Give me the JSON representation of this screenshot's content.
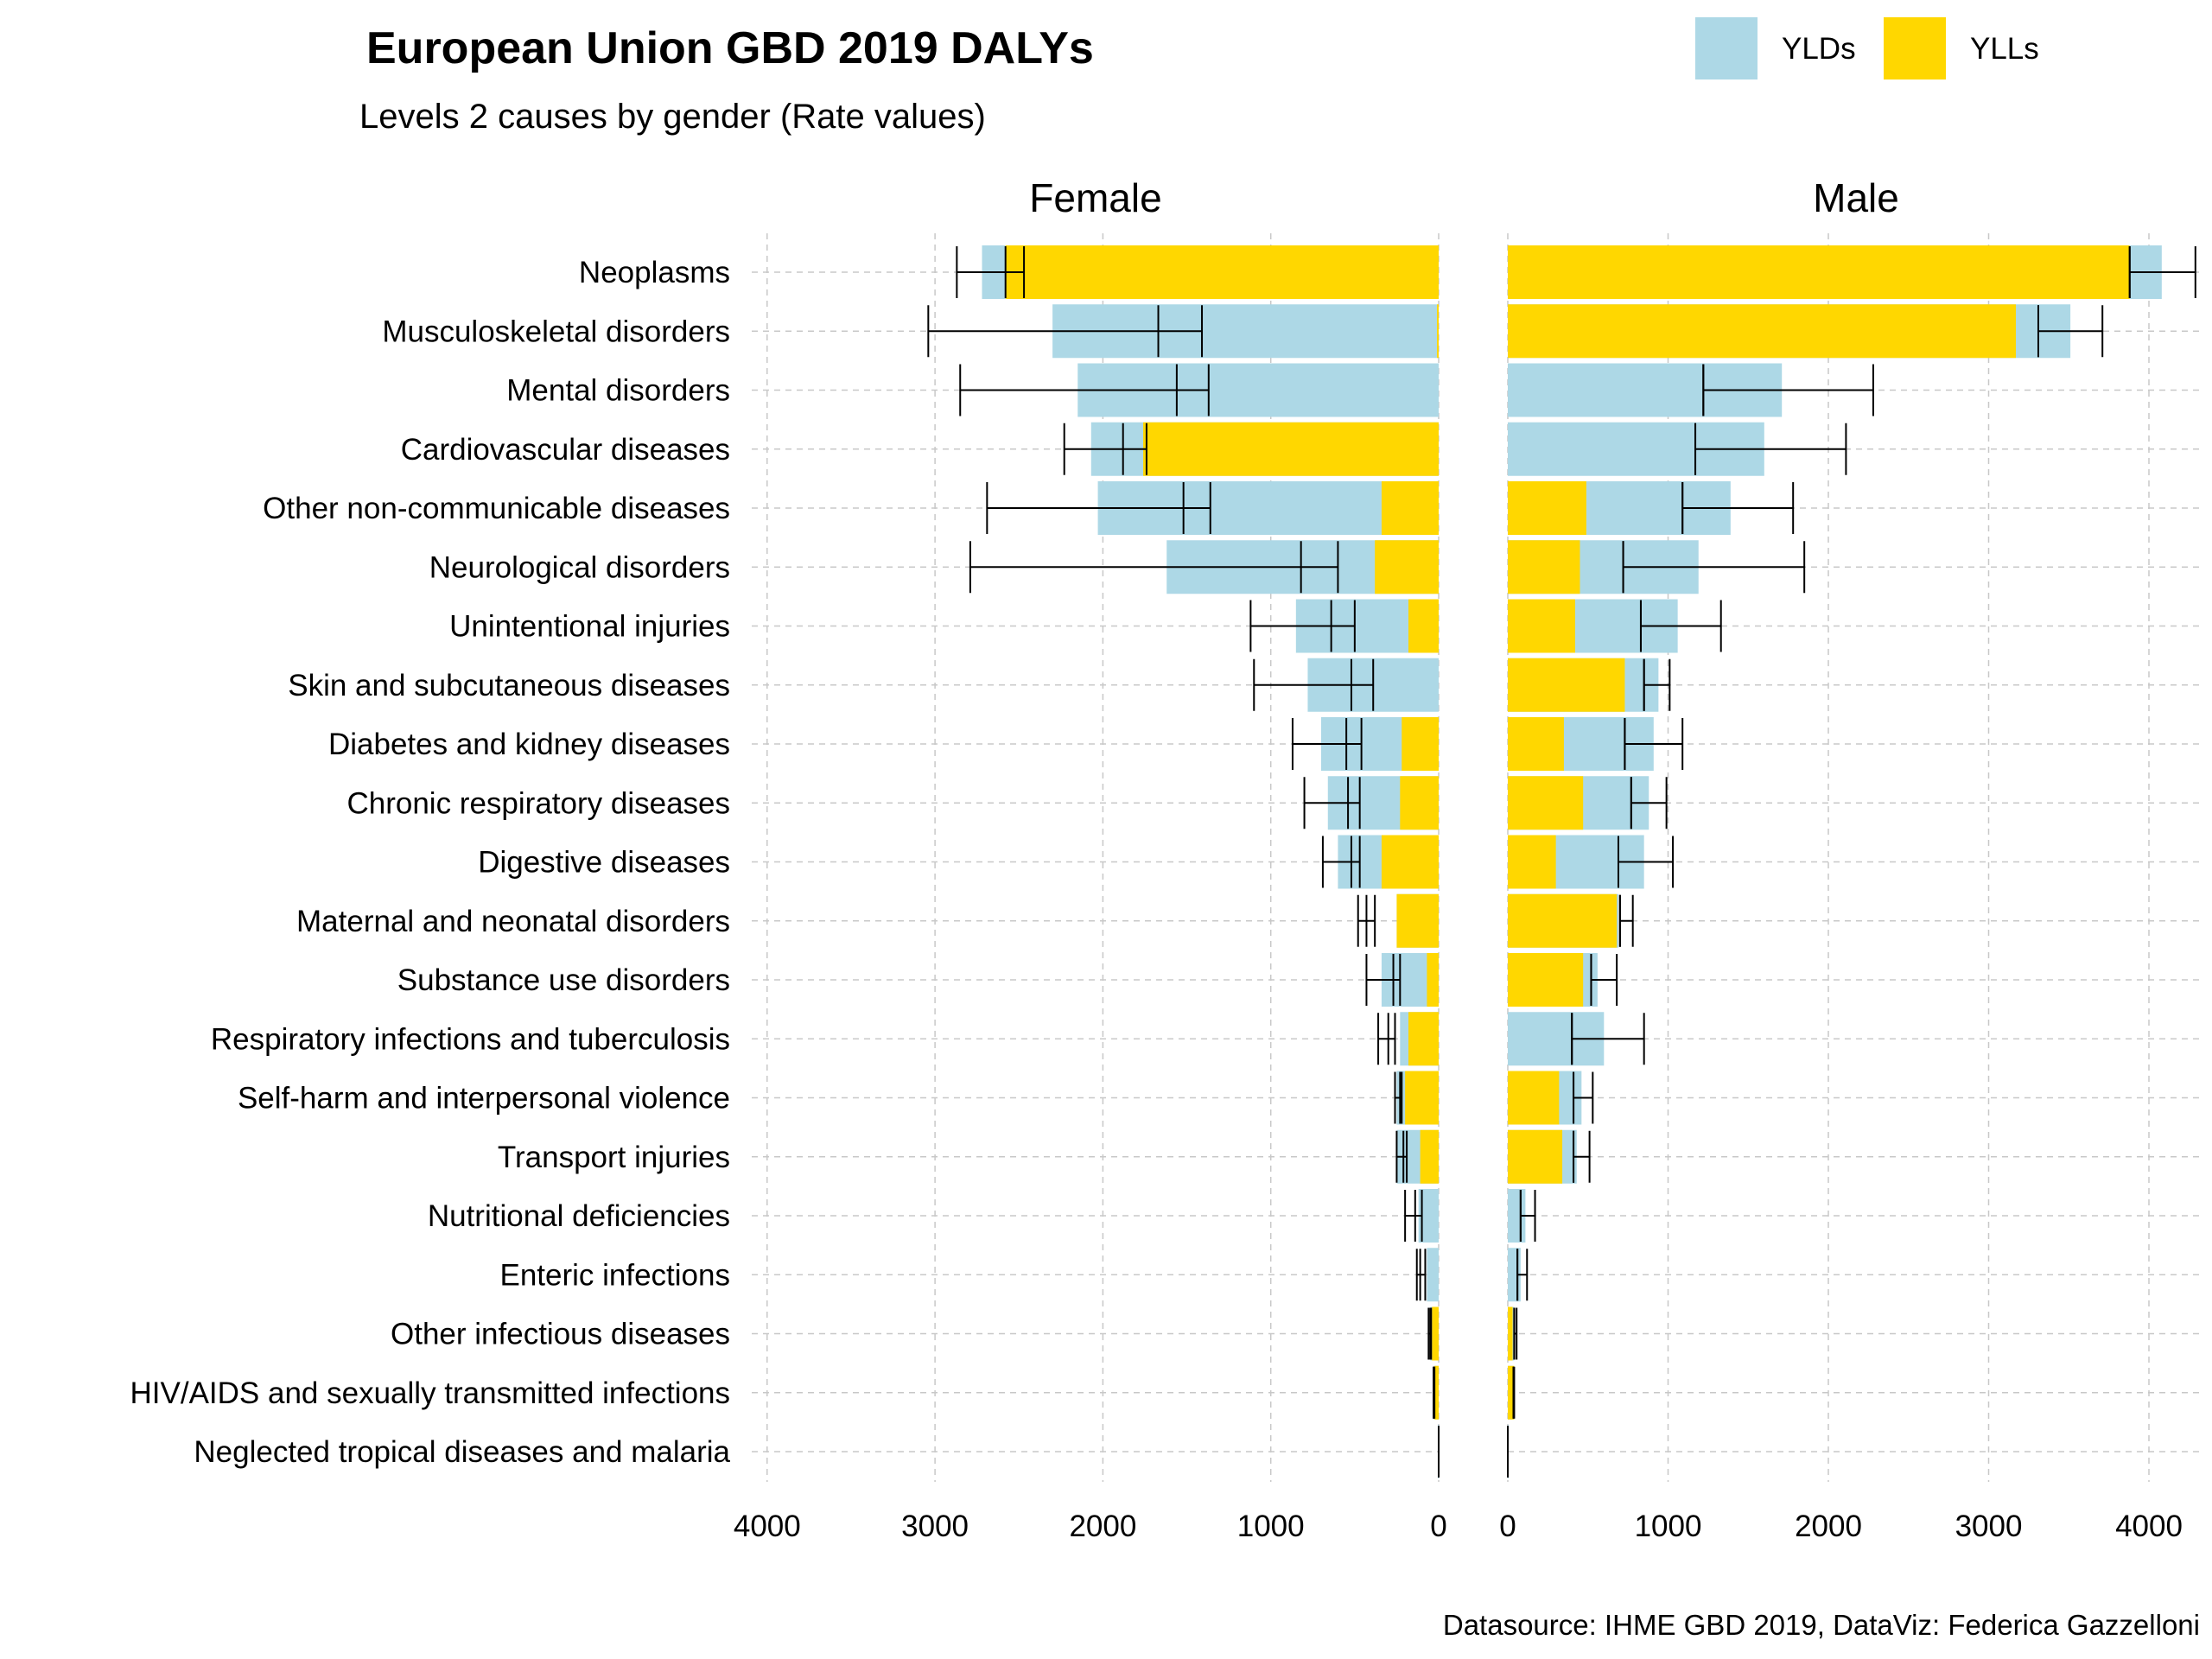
{
  "chart_data": {
    "type": "bar",
    "title": "European Union GBD 2019 DALYs",
    "subtitle": "Levels 2 causes by gender (Rate values)",
    "caption": "Datasource: IHME GBD 2019, DataViz: Federica Gazzelloni",
    "legend": {
      "placement": "top-right",
      "entries": [
        {
          "name": "YLDs",
          "color": "#ADD8E6"
        },
        {
          "name": "YLLs",
          "color": "#FFD700"
        }
      ]
    },
    "facets": [
      "Female",
      "Male"
    ],
    "xlim": [
      0,
      4300
    ],
    "xticks": [
      0,
      1000,
      2000,
      3000,
      4000
    ],
    "grid": true,
    "categories": [
      "Neoplasms",
      "Musculoskeletal disorders",
      "Mental disorders",
      "Cardiovascular diseases",
      "Other non-communicable diseases",
      "Neurological disorders",
      "Unintentional injuries",
      "Skin and subcutaneous diseases",
      "Diabetes and kidney diseases",
      "Chronic respiratory diseases",
      "Digestive diseases",
      "Maternal and neonatal disorders",
      "Substance use disorders",
      "Respiratory infections and tuberculosis",
      "Self-harm and interpersonal violence",
      "Transport injuries",
      "Nutritional deficiencies",
      "Enteric infections",
      "Other infectious diseases",
      "HIV/AIDS and sexually transmitted infections",
      "Neglected tropical diseases and malaria"
    ],
    "series": [
      {
        "name": "Female YLDs total",
        "values": [
          2720,
          2300,
          2150,
          2070,
          2030,
          1620,
          850,
          780,
          700,
          660,
          600,
          250,
          340,
          230,
          250,
          250,
          120,
          70,
          50,
          30,
          5
        ]
      },
      {
        "name": "Female YLLs",
        "values": [
          2580,
          10,
          0,
          1760,
          340,
          380,
          180,
          0,
          220,
          230,
          340,
          250,
          70,
          180,
          200,
          110,
          0,
          0,
          40,
          25,
          0
        ]
      },
      {
        "name": "Female error center",
        "values": [
          2580,
          1670,
          1560,
          1880,
          1520,
          820,
          640,
          520,
          550,
          540,
          520,
          430,
          270,
          300,
          230,
          210,
          140,
          110,
          50,
          30,
          0
        ]
      },
      {
        "name": "Female error low",
        "values": [
          2470,
          1410,
          1370,
          1740,
          1360,
          600,
          500,
          390,
          460,
          470,
          470,
          380,
          230,
          260,
          220,
          190,
          100,
          80,
          45,
          25,
          0
        ]
      },
      {
        "name": "Female error high",
        "values": [
          2870,
          3040,
          2850,
          2230,
          2690,
          2790,
          1120,
          1100,
          870,
          800,
          690,
          480,
          430,
          360,
          260,
          250,
          200,
          130,
          60,
          30,
          0
        ]
      },
      {
        "name": "Male YLDs total",
        "values": [
          4080,
          3510,
          1710,
          1600,
          1390,
          1190,
          1060,
          940,
          910,
          880,
          850,
          690,
          560,
          600,
          460,
          430,
          110,
          80,
          40,
          35,
          5
        ]
      },
      {
        "name": "Male YLLs",
        "values": [
          3880,
          3170,
          0,
          0,
          490,
          450,
          420,
          730,
          350,
          470,
          300,
          680,
          470,
          0,
          320,
          340,
          0,
          0,
          30,
          40,
          0
        ]
      },
      {
        "name": "Male error center",
        "values": [
          3880,
          3310,
          1220,
          1170,
          1090,
          720,
          830,
          850,
          730,
          770,
          690,
          700,
          520,
          400,
          410,
          410,
          80,
          60,
          40,
          35,
          0
        ]
      },
      {
        "name": "Male error low",
        "values": [
          3880,
          3310,
          1220,
          1170,
          1090,
          720,
          830,
          850,
          730,
          770,
          690,
          700,
          520,
          400,
          410,
          410,
          80,
          60,
          40,
          35,
          0
        ]
      },
      {
        "name": "Male error high",
        "values": [
          4290,
          3710,
          2280,
          2110,
          1780,
          1850,
          1330,
          1010,
          1090,
          990,
          1030,
          780,
          680,
          850,
          530,
          510,
          170,
          120,
          55,
          40,
          0
        ]
      }
    ]
  }
}
